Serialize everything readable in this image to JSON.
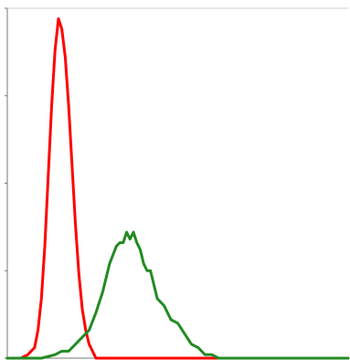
{
  "chart_data": {
    "type": "line",
    "title": "",
    "xlabel": "",
    "ylabel": "",
    "grid": false,
    "legend": "none",
    "xlim": [
      0,
      100
    ],
    "ylim": [
      0,
      100
    ],
    "yticks": [
      0,
      25,
      50,
      75,
      100
    ],
    "series": [
      {
        "color": "#ff0000",
        "x": [
          0,
          4,
          6,
          8,
          9,
          10,
          11,
          12,
          13,
          14,
          15,
          16,
          17,
          18,
          19,
          20,
          21,
          22,
          23,
          24,
          25,
          26,
          100
        ],
        "y": [
          0,
          0,
          1,
          3,
          8,
          17,
          32,
          52,
          72,
          88,
          97,
          94,
          86,
          72,
          55,
          38,
          24,
          14,
          8,
          4,
          2,
          0,
          0
        ]
      },
      {
        "color": "#228b22",
        "x": [
          0,
          5,
          10,
          14,
          16,
          18,
          20,
          22,
          24,
          26,
          28,
          30,
          32,
          33,
          34,
          35,
          36,
          37,
          38,
          39,
          40,
          41,
          42,
          43,
          44,
          46,
          48,
          50,
          52,
          54,
          56,
          58,
          60,
          62,
          64,
          66,
          100
        ],
        "y": [
          0,
          0,
          0,
          1,
          2,
          2,
          4,
          6,
          8,
          13,
          19,
          27,
          32,
          33,
          33,
          36,
          34,
          36,
          33,
          31,
          27,
          25,
          25,
          21,
          17,
          15,
          11,
          10,
          7,
          4,
          3,
          1,
          1,
          0,
          0,
          0,
          0
        ]
      }
    ]
  },
  "colors": {
    "axis": "#777777",
    "background": "#ffffff"
  }
}
